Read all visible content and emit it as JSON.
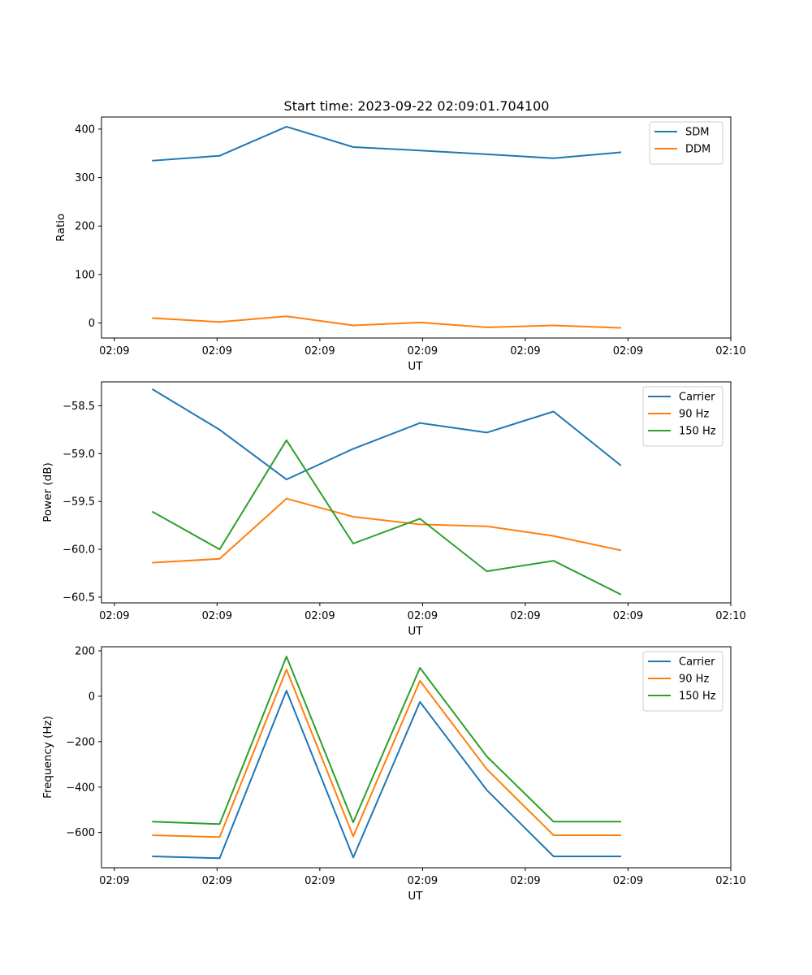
{
  "chart_data": [
    {
      "type": "line",
      "title": "Start time: 2023-09-22 02:09:01.704100",
      "xlabel": "UT",
      "ylabel": "Ratio",
      "x_tick_labels": [
        "02:09",
        "02:09",
        "02:09",
        "02:09",
        "02:09",
        "02:09",
        "02:09"
      ],
      "x_last_tick_label": "02:10",
      "xlim": [
        0,
        12.25
      ],
      "ylim": [
        -31,
        425
      ],
      "yticks": [
        0,
        100,
        200,
        300,
        400
      ],
      "ytick_labels": [
        "0",
        "100",
        "200",
        "300",
        "400"
      ],
      "legend_position": "top-right",
      "series": [
        {
          "name": "SDM",
          "color": "#1f77b4",
          "x": [
            1,
            2.3,
            3.6,
            4.9,
            6.2,
            7.5,
            8.8,
            10.1
          ],
          "values": [
            335,
            345,
            405,
            363,
            356,
            348,
            340,
            352
          ]
        },
        {
          "name": "DDM",
          "color": "#ff7f0e",
          "x": [
            1,
            2.3,
            3.6,
            4.9,
            6.2,
            7.5,
            8.8,
            10.1
          ],
          "values": [
            10,
            2,
            14,
            -5,
            1,
            -9,
            -5,
            -10
          ]
        }
      ]
    },
    {
      "type": "line",
      "title": "",
      "xlabel": "UT",
      "ylabel": "Power (dB)",
      "x_tick_labels": [
        "02:09",
        "02:09",
        "02:09",
        "02:09",
        "02:09",
        "02:09",
        "02:09"
      ],
      "x_last_tick_label": "02:10",
      "xlim": [
        0,
        12.25
      ],
      "ylim": [
        -60.56,
        -58.25
      ],
      "yticks": [
        -58.5,
        -59.0,
        -59.5,
        -60.0,
        -60.5
      ],
      "ytick_labels": [
        "−58.5",
        "−59.0",
        "−59.5",
        "−60.0",
        "−60.5"
      ],
      "legend_position": "top-right",
      "series": [
        {
          "name": "Carrier",
          "color": "#1f77b4",
          "x": [
            1,
            2.3,
            3.6,
            4.9,
            6.2,
            7.5,
            8.8,
            10.1
          ],
          "values": [
            -58.33,
            -58.75,
            -59.27,
            -58.95,
            -58.68,
            -58.78,
            -58.56,
            -59.12
          ]
        },
        {
          "name": "90 Hz",
          "color": "#ff7f0e",
          "x": [
            1,
            2.3,
            3.6,
            4.9,
            6.2,
            7.5,
            8.8,
            10.1
          ],
          "values": [
            -60.14,
            -60.1,
            -59.47,
            -59.66,
            -59.74,
            -59.76,
            -59.86,
            -60.01
          ]
        },
        {
          "name": "150 Hz",
          "color": "#2ca02c",
          "x": [
            1,
            2.3,
            3.6,
            4.9,
            6.2,
            7.5,
            8.8,
            10.1
          ],
          "values": [
            -59.61,
            -60.0,
            -58.86,
            -59.94,
            -59.68,
            -60.23,
            -60.12,
            -60.47
          ]
        }
      ]
    },
    {
      "type": "line",
      "title": "",
      "xlabel": "UT",
      "ylabel": "Frequency (Hz)",
      "x_tick_labels": [
        "02:09",
        "02:09",
        "02:09",
        "02:09",
        "02:09",
        "02:09",
        "02:09"
      ],
      "x_last_tick_label": "02:10",
      "xlim": [
        0,
        12.25
      ],
      "ylim": [
        -755,
        218
      ],
      "yticks": [
        200,
        0,
        -200,
        -400,
        -600
      ],
      "ytick_labels": [
        "200",
        "0",
        "−200",
        "−400",
        "−600"
      ],
      "legend_position": "top-right",
      "series": [
        {
          "name": "Carrier",
          "color": "#1f77b4",
          "x": [
            1,
            2.3,
            3.6,
            4.9,
            6.2,
            7.5,
            8.8,
            10.1
          ],
          "values": [
            -705,
            -713,
            25,
            -710,
            -25,
            -413,
            -705,
            -705
          ]
        },
        {
          "name": "90 Hz",
          "color": "#ff7f0e",
          "x": [
            1,
            2.3,
            3.6,
            4.9,
            6.2,
            7.5,
            8.8,
            10.1
          ],
          "values": [
            -612,
            -620,
            118,
            -617,
            68,
            -321,
            -612,
            -612
          ]
        },
        {
          "name": "150 Hz",
          "color": "#2ca02c",
          "x": [
            1,
            2.3,
            3.6,
            4.9,
            6.2,
            7.5,
            8.8,
            10.1
          ],
          "values": [
            -552,
            -563,
            175,
            -555,
            125,
            -265,
            -552,
            -552
          ]
        }
      ]
    }
  ]
}
